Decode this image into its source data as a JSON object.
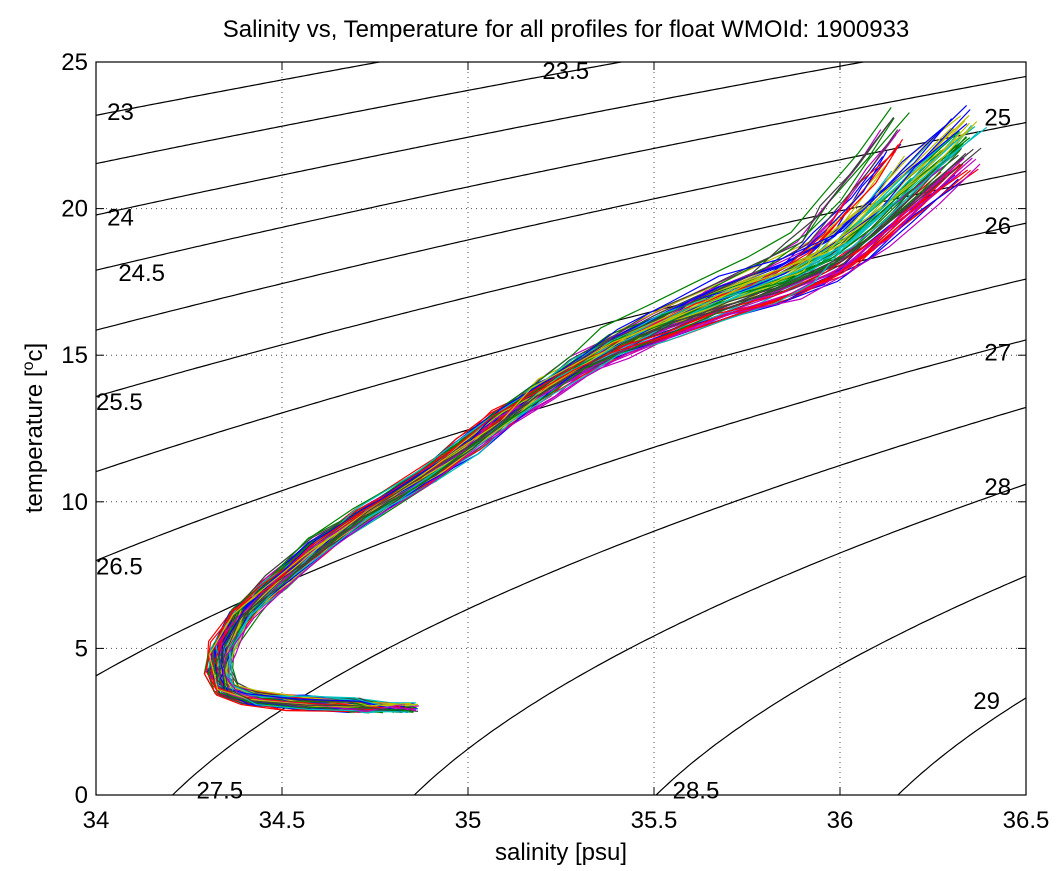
{
  "chart_data": {
    "type": "line",
    "title": "Salinity vs, Temperature for all profiles for float WMOId: 1900933",
    "xlabel": "salinity [psu]",
    "ylabel_main": "temperature [",
    "ylabel_sup": "o",
    "ylabel_end": "c]",
    "xlim": [
      34,
      36.5
    ],
    "ylim": [
      0,
      25
    ],
    "xticks": [
      34,
      34.5,
      35,
      35.5,
      36,
      36.5
    ],
    "xtick_labels": [
      "34",
      "34.5",
      "35",
      "35.5",
      "36",
      "36.5"
    ],
    "yticks": [
      0,
      5,
      10,
      15,
      20,
      25
    ],
    "ytick_labels": [
      "0",
      "5",
      "10",
      "15",
      "20",
      "25"
    ],
    "grid": true,
    "legend": "none",
    "density_contours": [
      {
        "label": "23",
        "sigma": 23.0,
        "label_at": [
          34.03,
          23.3
        ]
      },
      {
        "label": "23.5",
        "sigma": 23.5,
        "label_at": [
          35.2,
          24.7
        ]
      },
      {
        "label": "24",
        "sigma": 24.0,
        "label_at": [
          34.03,
          19.7
        ]
      },
      {
        "label": "24.5",
        "sigma": 24.5,
        "label_at": [
          34.06,
          17.8
        ]
      },
      {
        "label": "25",
        "sigma": 25.0,
        "label_at": [
          36.46,
          23.1
        ]
      },
      {
        "label": "25.5",
        "sigma": 25.5,
        "label_at": [
          34.0,
          13.4
        ]
      },
      {
        "label": "26",
        "sigma": 26.0,
        "label_at": [
          36.46,
          19.4
        ]
      },
      {
        "label": "26.5",
        "sigma": 26.5,
        "label_at": [
          34.0,
          7.8
        ]
      },
      {
        "label": "27",
        "sigma": 27.0,
        "label_at": [
          36.46,
          15.1
        ]
      },
      {
        "label": "27.5",
        "sigma": 27.5,
        "label_at": [
          34.27,
          0.15
        ]
      },
      {
        "label": "28",
        "sigma": 28.0,
        "label_at": [
          36.46,
          10.5
        ]
      },
      {
        "label": "28.5",
        "sigma": 28.5,
        "label_at": [
          35.55,
          0.15
        ]
      },
      {
        "label": "29",
        "sigma": 29.0,
        "label_at": [
          36.43,
          3.2
        ]
      }
    ],
    "profile_colors": [
      "#0000ff",
      "#008000",
      "#ff0000",
      "#00bfbf",
      "#bf00bf",
      "#bfbf00",
      "#404040"
    ],
    "profile_count": 84,
    "mean_profile": [
      [
        34.82,
        2.9
      ],
      [
        34.7,
        3.05
      ],
      [
        34.55,
        3.15
      ],
      [
        34.42,
        3.3
      ],
      [
        34.35,
        3.6
      ],
      [
        34.33,
        4.2
      ],
      [
        34.34,
        5.0
      ],
      [
        34.4,
        6.2
      ],
      [
        34.48,
        7.2
      ],
      [
        34.6,
        8.5
      ],
      [
        34.72,
        9.6
      ],
      [
        34.88,
        10.8
      ],
      [
        35.0,
        11.9
      ],
      [
        35.1,
        12.9
      ],
      [
        35.2,
        13.8
      ],
      [
        35.3,
        14.6
      ],
      [
        35.4,
        15.3
      ],
      [
        35.52,
        16.0
      ],
      [
        35.65,
        16.7
      ],
      [
        35.8,
        17.4
      ],
      [
        35.92,
        18.2
      ],
      [
        36.0,
        19.2
      ],
      [
        36.1,
        20.6
      ],
      [
        36.2,
        22.0
      ]
    ]
  }
}
